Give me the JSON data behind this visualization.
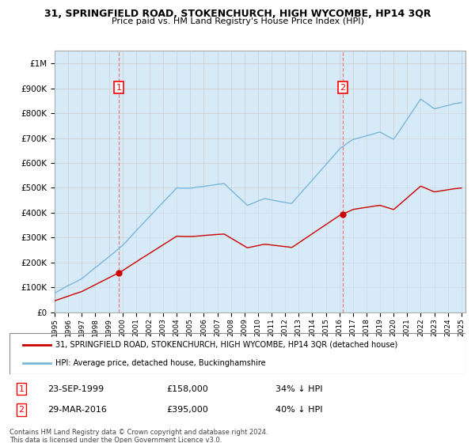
{
  "title": "31, SPRINGFIELD ROAD, STOKENCHURCH, HIGH WYCOMBE, HP14 3QR",
  "subtitle": "Price paid vs. HM Land Registry's House Price Index (HPI)",
  "ylabel_ticks": [
    "£0",
    "£100K",
    "£200K",
    "£300K",
    "£400K",
    "£500K",
    "£600K",
    "£700K",
    "£800K",
    "£900K",
    "£1M"
  ],
  "ytick_values": [
    0,
    100000,
    200000,
    300000,
    400000,
    500000,
    600000,
    700000,
    800000,
    900000,
    1000000
  ],
  "ylim": [
    0,
    1050000
  ],
  "xlim_start": 1995.0,
  "xlim_end": 2025.3,
  "sale1_x": 1999.73,
  "sale1_y": 158000,
  "sale1_label": "1",
  "sale1_date": "23-SEP-1999",
  "sale1_price": "£158,000",
  "sale1_hpi": "34% ↓ HPI",
  "sale2_x": 2016.25,
  "sale2_y": 395000,
  "sale2_label": "2",
  "sale2_date": "29-MAR-2016",
  "sale2_price": "£395,000",
  "sale2_hpi": "40% ↓ HPI",
  "hpi_color": "#7ab8d9",
  "hpi_fill_color": "#d6eaf8",
  "sale_color": "#cc0000",
  "vline_color": "#e88080",
  "background_color": "#ffffff",
  "grid_color": "#cccccc",
  "legend_label_sale": "31, SPRINGFIELD ROAD, STOKENCHURCH, HIGH WYCOMBE, HP14 3QR (detached house)",
  "legend_label_hpi": "HPI: Average price, detached house, Buckinghamshire",
  "footer": "Contains HM Land Registry data © Crown copyright and database right 2024.\nThis data is licensed under the Open Government Licence v3.0.",
  "xtick_years": [
    1995,
    1996,
    1997,
    1998,
    1999,
    2000,
    2001,
    2002,
    2003,
    2004,
    2005,
    2006,
    2007,
    2008,
    2009,
    2010,
    2011,
    2012,
    2013,
    2014,
    2015,
    2016,
    2017,
    2018,
    2019,
    2020,
    2021,
    2022,
    2023,
    2024,
    2025
  ]
}
